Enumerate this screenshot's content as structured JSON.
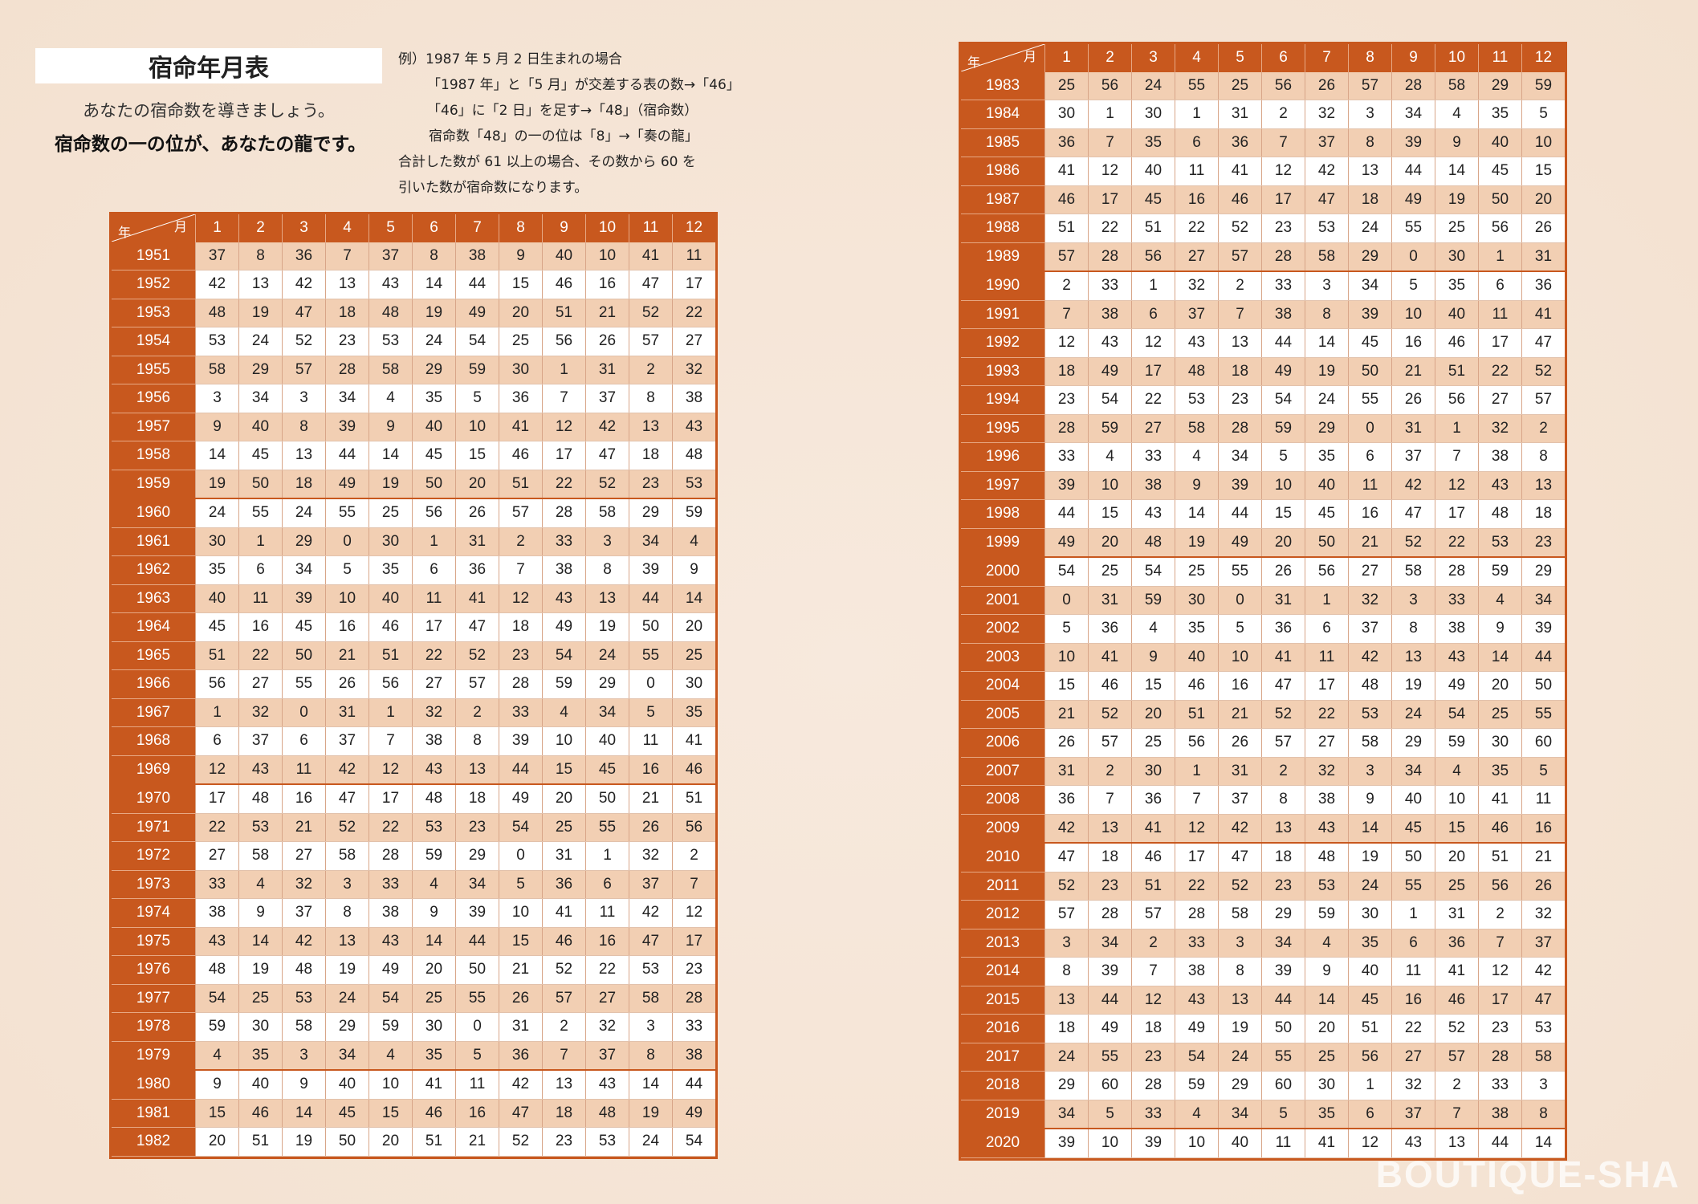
{
  "title": "宿命年月表",
  "subtitle": "あなたの宿命数を導きましょう。",
  "tagline": "宿命数の一の位が、あなたの龍です。",
  "example": {
    "line1": "例）1987 年 5 月 2 日生まれの場合",
    "line2": "「1987 年」と「5 月」が交差する表の数→「46」",
    "line3": "「46」に「2 日」を足す→「48」（宿命数）",
    "line4": "宿命数「48」の一の位は「8」→「奏の龍」",
    "line5": "合計した数が 61 以上の場合、その数から 60 を",
    "line6": "引いた数が宿命数になります。"
  },
  "table_header": {
    "corner_year": "年",
    "corner_month": "月",
    "months": [
      "1",
      "2",
      "3",
      "4",
      "5",
      "6",
      "7",
      "8",
      "9",
      "10",
      "11",
      "12"
    ]
  },
  "colors": {
    "accent": "#c8581e",
    "alt_row": "#f2cfb3",
    "background": "#f6e6d8"
  },
  "left_table": [
    {
      "year": "1951",
      "values": [
        37,
        8,
        36,
        7,
        37,
        8,
        38,
        9,
        40,
        10,
        41,
        11
      ]
    },
    {
      "year": "1952",
      "values": [
        42,
        13,
        42,
        13,
        43,
        14,
        44,
        15,
        46,
        16,
        47,
        17
      ]
    },
    {
      "year": "1953",
      "values": [
        48,
        19,
        47,
        18,
        48,
        19,
        49,
        20,
        51,
        21,
        52,
        22
      ]
    },
    {
      "year": "1954",
      "values": [
        53,
        24,
        52,
        23,
        53,
        24,
        54,
        25,
        56,
        26,
        57,
        27
      ]
    },
    {
      "year": "1955",
      "values": [
        58,
        29,
        57,
        28,
        58,
        29,
        59,
        30,
        1,
        31,
        2,
        32
      ]
    },
    {
      "year": "1956",
      "values": [
        3,
        34,
        3,
        34,
        4,
        35,
        5,
        36,
        7,
        37,
        8,
        38
      ]
    },
    {
      "year": "1957",
      "values": [
        9,
        40,
        8,
        39,
        9,
        40,
        10,
        41,
        12,
        42,
        13,
        43
      ]
    },
    {
      "year": "1958",
      "values": [
        14,
        45,
        13,
        44,
        14,
        45,
        15,
        46,
        17,
        47,
        18,
        48
      ]
    },
    {
      "year": "1959",
      "values": [
        19,
        50,
        18,
        49,
        19,
        50,
        20,
        51,
        22,
        52,
        23,
        53
      ]
    },
    {
      "year": "1960",
      "values": [
        24,
        55,
        24,
        55,
        25,
        56,
        26,
        57,
        28,
        58,
        29,
        59
      ]
    },
    {
      "year": "1961",
      "values": [
        30,
        1,
        29,
        0,
        30,
        1,
        31,
        2,
        33,
        3,
        34,
        4
      ]
    },
    {
      "year": "1962",
      "values": [
        35,
        6,
        34,
        5,
        35,
        6,
        36,
        7,
        38,
        8,
        39,
        9
      ]
    },
    {
      "year": "1963",
      "values": [
        40,
        11,
        39,
        10,
        40,
        11,
        41,
        12,
        43,
        13,
        44,
        14
      ]
    },
    {
      "year": "1964",
      "values": [
        45,
        16,
        45,
        16,
        46,
        17,
        47,
        18,
        49,
        19,
        50,
        20
      ]
    },
    {
      "year": "1965",
      "values": [
        51,
        22,
        50,
        21,
        51,
        22,
        52,
        23,
        54,
        24,
        55,
        25
      ]
    },
    {
      "year": "1966",
      "values": [
        56,
        27,
        55,
        26,
        56,
        27,
        57,
        28,
        59,
        29,
        0,
        30
      ]
    },
    {
      "year": "1967",
      "values": [
        1,
        32,
        0,
        31,
        1,
        32,
        2,
        33,
        4,
        34,
        5,
        35
      ]
    },
    {
      "year": "1968",
      "values": [
        6,
        37,
        6,
        37,
        7,
        38,
        8,
        39,
        10,
        40,
        11,
        41
      ]
    },
    {
      "year": "1969",
      "values": [
        12,
        43,
        11,
        42,
        12,
        43,
        13,
        44,
        15,
        45,
        16,
        46
      ]
    },
    {
      "year": "1970",
      "values": [
        17,
        48,
        16,
        47,
        17,
        48,
        18,
        49,
        20,
        50,
        21,
        51
      ]
    },
    {
      "year": "1971",
      "values": [
        22,
        53,
        21,
        52,
        22,
        53,
        23,
        54,
        25,
        55,
        26,
        56
      ]
    },
    {
      "year": "1972",
      "values": [
        27,
        58,
        27,
        58,
        28,
        59,
        29,
        0,
        31,
        1,
        32,
        2
      ]
    },
    {
      "year": "1973",
      "values": [
        33,
        4,
        32,
        3,
        33,
        4,
        34,
        5,
        36,
        6,
        37,
        7
      ]
    },
    {
      "year": "1974",
      "values": [
        38,
        9,
        37,
        8,
        38,
        9,
        39,
        10,
        41,
        11,
        42,
        12
      ]
    },
    {
      "year": "1975",
      "values": [
        43,
        14,
        42,
        13,
        43,
        14,
        44,
        15,
        46,
        16,
        47,
        17
      ]
    },
    {
      "year": "1976",
      "values": [
        48,
        19,
        48,
        19,
        49,
        20,
        50,
        21,
        52,
        22,
        53,
        23
      ]
    },
    {
      "year": "1977",
      "values": [
        54,
        25,
        53,
        24,
        54,
        25,
        55,
        26,
        57,
        27,
        58,
        28
      ]
    },
    {
      "year": "1978",
      "values": [
        59,
        30,
        58,
        29,
        59,
        30,
        0,
        31,
        2,
        32,
        3,
        33
      ]
    },
    {
      "year": "1979",
      "values": [
        4,
        35,
        3,
        34,
        4,
        35,
        5,
        36,
        7,
        37,
        8,
        38
      ]
    },
    {
      "year": "1980",
      "values": [
        9,
        40,
        9,
        40,
        10,
        41,
        11,
        42,
        13,
        43,
        14,
        44
      ]
    },
    {
      "year": "1981",
      "values": [
        15,
        46,
        14,
        45,
        15,
        46,
        16,
        47,
        18,
        48,
        19,
        49
      ]
    },
    {
      "year": "1982",
      "values": [
        20,
        51,
        19,
        50,
        20,
        51,
        21,
        52,
        23,
        53,
        24,
        54
      ]
    }
  ],
  "right_table": [
    {
      "year": "1983",
      "values": [
        25,
        56,
        24,
        55,
        25,
        56,
        26,
        57,
        28,
        58,
        29,
        59
      ]
    },
    {
      "year": "1984",
      "values": [
        30,
        1,
        30,
        1,
        31,
        2,
        32,
        3,
        34,
        4,
        35,
        5
      ]
    },
    {
      "year": "1985",
      "values": [
        36,
        7,
        35,
        6,
        36,
        7,
        37,
        8,
        39,
        9,
        40,
        10
      ]
    },
    {
      "year": "1986",
      "values": [
        41,
        12,
        40,
        11,
        41,
        12,
        42,
        13,
        44,
        14,
        45,
        15
      ]
    },
    {
      "year": "1987",
      "values": [
        46,
        17,
        45,
        16,
        46,
        17,
        47,
        18,
        49,
        19,
        50,
        20
      ]
    },
    {
      "year": "1988",
      "values": [
        51,
        22,
        51,
        22,
        52,
        23,
        53,
        24,
        55,
        25,
        56,
        26
      ]
    },
    {
      "year": "1989",
      "values": [
        57,
        28,
        56,
        27,
        57,
        28,
        58,
        29,
        0,
        30,
        1,
        31
      ]
    },
    {
      "year": "1990",
      "values": [
        2,
        33,
        1,
        32,
        2,
        33,
        3,
        34,
        5,
        35,
        6,
        36
      ]
    },
    {
      "year": "1991",
      "values": [
        7,
        38,
        6,
        37,
        7,
        38,
        8,
        39,
        10,
        40,
        11,
        41
      ]
    },
    {
      "year": "1992",
      "values": [
        12,
        43,
        12,
        43,
        13,
        44,
        14,
        45,
        16,
        46,
        17,
        47
      ]
    },
    {
      "year": "1993",
      "values": [
        18,
        49,
        17,
        48,
        18,
        49,
        19,
        50,
        21,
        51,
        22,
        52
      ]
    },
    {
      "year": "1994",
      "values": [
        23,
        54,
        22,
        53,
        23,
        54,
        24,
        55,
        26,
        56,
        27,
        57
      ]
    },
    {
      "year": "1995",
      "values": [
        28,
        59,
        27,
        58,
        28,
        59,
        29,
        0,
        31,
        1,
        32,
        2
      ]
    },
    {
      "year": "1996",
      "values": [
        33,
        4,
        33,
        4,
        34,
        5,
        35,
        6,
        37,
        7,
        38,
        8
      ]
    },
    {
      "year": "1997",
      "values": [
        39,
        10,
        38,
        9,
        39,
        10,
        40,
        11,
        42,
        12,
        43,
        13
      ]
    },
    {
      "year": "1998",
      "values": [
        44,
        15,
        43,
        14,
        44,
        15,
        45,
        16,
        47,
        17,
        48,
        18
      ]
    },
    {
      "year": "1999",
      "values": [
        49,
        20,
        48,
        19,
        49,
        20,
        50,
        21,
        52,
        22,
        53,
        23
      ]
    },
    {
      "year": "2000",
      "values": [
        54,
        25,
        54,
        25,
        55,
        26,
        56,
        27,
        58,
        28,
        59,
        29
      ]
    },
    {
      "year": "2001",
      "values": [
        0,
        31,
        59,
        30,
        0,
        31,
        1,
        32,
        3,
        33,
        4,
        34
      ]
    },
    {
      "year": "2002",
      "values": [
        5,
        36,
        4,
        35,
        5,
        36,
        6,
        37,
        8,
        38,
        9,
        39
      ]
    },
    {
      "year": "2003",
      "values": [
        10,
        41,
        9,
        40,
        10,
        41,
        11,
        42,
        13,
        43,
        14,
        44
      ]
    },
    {
      "year": "2004",
      "values": [
        15,
        46,
        15,
        46,
        16,
        47,
        17,
        48,
        19,
        49,
        20,
        50
      ]
    },
    {
      "year": "2005",
      "values": [
        21,
        52,
        20,
        51,
        21,
        52,
        22,
        53,
        24,
        54,
        25,
        55
      ]
    },
    {
      "year": "2006",
      "values": [
        26,
        57,
        25,
        56,
        26,
        57,
        27,
        58,
        29,
        59,
        30,
        60
      ]
    },
    {
      "year": "2007",
      "values": [
        31,
        2,
        30,
        1,
        31,
        2,
        32,
        3,
        34,
        4,
        35,
        5
      ]
    },
    {
      "year": "2008",
      "values": [
        36,
        7,
        36,
        7,
        37,
        8,
        38,
        9,
        40,
        10,
        41,
        11
      ]
    },
    {
      "year": "2009",
      "values": [
        42,
        13,
        41,
        12,
        42,
        13,
        43,
        14,
        45,
        15,
        46,
        16
      ]
    },
    {
      "year": "2010",
      "values": [
        47,
        18,
        46,
        17,
        47,
        18,
        48,
        19,
        50,
        20,
        51,
        21
      ]
    },
    {
      "year": "2011",
      "values": [
        52,
        23,
        51,
        22,
        52,
        23,
        53,
        24,
        55,
        25,
        56,
        26
      ]
    },
    {
      "year": "2012",
      "values": [
        57,
        28,
        57,
        28,
        58,
        29,
        59,
        30,
        1,
        31,
        2,
        32
      ]
    },
    {
      "year": "2013",
      "values": [
        3,
        34,
        2,
        33,
        3,
        34,
        4,
        35,
        6,
        36,
        7,
        37
      ]
    },
    {
      "year": "2014",
      "values": [
        8,
        39,
        7,
        38,
        8,
        39,
        9,
        40,
        11,
        41,
        12,
        42
      ]
    },
    {
      "year": "2015",
      "values": [
        13,
        44,
        12,
        43,
        13,
        44,
        14,
        45,
        16,
        46,
        17,
        47
      ]
    },
    {
      "year": "2016",
      "values": [
        18,
        49,
        18,
        49,
        19,
        50,
        20,
        51,
        22,
        52,
        23,
        53
      ]
    },
    {
      "year": "2017",
      "values": [
        24,
        55,
        23,
        54,
        24,
        55,
        25,
        56,
        27,
        57,
        28,
        58
      ]
    },
    {
      "year": "2018",
      "values": [
        29,
        60,
        28,
        59,
        29,
        60,
        30,
        1,
        32,
        2,
        33,
        3
      ]
    },
    {
      "year": "2019",
      "values": [
        34,
        5,
        33,
        4,
        34,
        5,
        35,
        6,
        37,
        7,
        38,
        8
      ]
    },
    {
      "year": "2020",
      "values": [
        39,
        10,
        39,
        10,
        40,
        11,
        41,
        12,
        43,
        13,
        44,
        14
      ]
    }
  ],
  "watermark": "BOUTIQUE-SHA"
}
